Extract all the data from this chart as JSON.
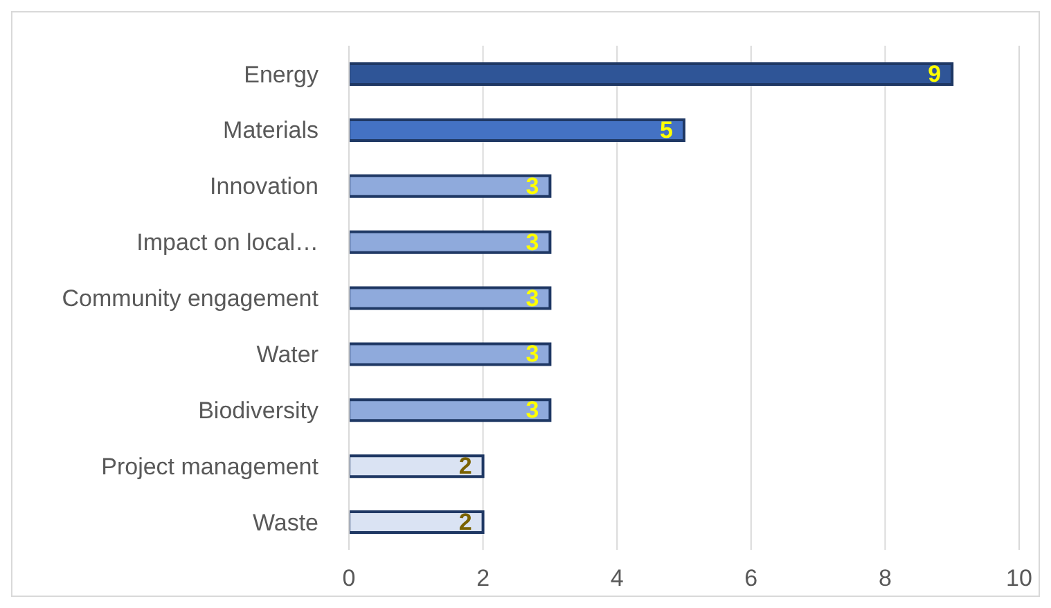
{
  "chart_data": {
    "type": "bar",
    "orientation": "horizontal",
    "categories": [
      "Energy",
      "Materials",
      "Innovation",
      "Impact on local…",
      "Community engagement",
      "Water",
      "Biodiversity",
      "Project management",
      "Waste"
    ],
    "values": [
      9,
      5,
      3,
      3,
      3,
      3,
      3,
      2,
      2
    ],
    "colors": [
      "#2f5597",
      "#4472c4",
      "#8faadc",
      "#8faadc",
      "#8faadc",
      "#8faadc",
      "#8faadc",
      "#dae3f3",
      "#dae3f3"
    ],
    "xlim": [
      0,
      10
    ],
    "xticks": [
      0,
      2,
      4,
      6,
      8,
      10
    ],
    "grid": "x",
    "data_labels": true
  }
}
